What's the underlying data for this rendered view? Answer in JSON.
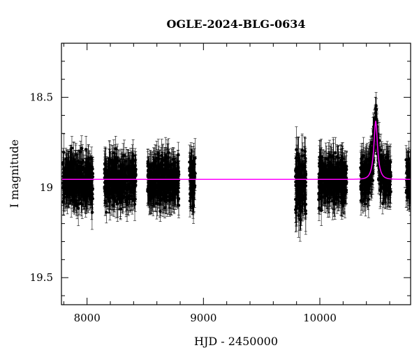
{
  "chart_data": {
    "type": "scatter",
    "title": "OGLE-2024-BLG-0634",
    "xlabel": "HJD - 2450000",
    "ylabel": "I magnitude",
    "xlim": [
      7780,
      10780
    ],
    "ylim": [
      19.65,
      18.2
    ],
    "y_inverted": true,
    "x_ticks": [
      8000,
      9000,
      10000
    ],
    "y_ticks": [
      18.5,
      19,
      19.5
    ],
    "x_minor_step": 200,
    "y_minor_step": 0.1,
    "grid": false,
    "legend": "none",
    "colors": {
      "data": "#000000",
      "model": "#ff00ff",
      "axes": "#000000"
    },
    "series": [
      {
        "kind": "observations",
        "with_error_bars": true,
        "seasons": [
          {
            "x_range": [
              7790,
              8050
            ],
            "y_center": 18.96,
            "y_spread": 0.11,
            "err": 0.08
          },
          {
            "x_range": [
              8150,
              8420
            ],
            "y_center": 18.96,
            "y_spread": 0.11,
            "err": 0.08
          },
          {
            "x_range": [
              8520,
              8790
            ],
            "y_center": 18.96,
            "y_spread": 0.11,
            "err": 0.08
          },
          {
            "x_range": [
              8880,
              8930
            ],
            "y_center": 18.96,
            "y_spread": 0.12,
            "err": 0.09
          },
          {
            "x_range": [
              9790,
              9880
            ],
            "y_center": 18.98,
            "y_spread": 0.15,
            "err": 0.1
          },
          {
            "x_range": [
              9990,
              10230
            ],
            "y_center": 18.96,
            "y_spread": 0.11,
            "err": 0.08
          },
          {
            "x_range": [
              10350,
              10610
            ],
            "y_center": 18.96,
            "y_spread": 0.1,
            "err": 0.08
          },
          {
            "x_range": [
              10740,
              10780
            ],
            "y_center": 18.96,
            "y_spread": 0.1,
            "err": 0.08
          }
        ]
      },
      {
        "kind": "model",
        "baseline": 18.955,
        "peak_x": 10480,
        "peak_y": 18.63,
        "tE": 42
      }
    ]
  }
}
